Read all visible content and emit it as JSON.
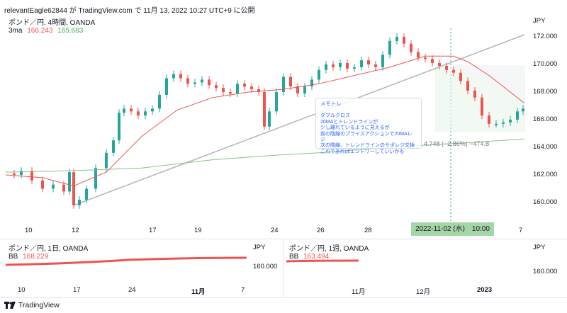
{
  "header": {
    "publisher": "relevantEagle62844 が TradingView.com で 11月 13, 2022 10:27 UTC+9 に公開"
  },
  "main_chart": {
    "symbol_line": "ポンド／円, 4時間, OANDA",
    "indicator_name": "3ma",
    "ma_value_1": "166.243",
    "ma_value_2": "165.683",
    "currency": "JPY",
    "price_ticks": [
      "172.000",
      "170.000",
      "168.000",
      "166.000",
      "164.000",
      "162.000",
      "160.000"
    ],
    "time_ticks": [
      "10",
      "12",
      "17",
      "19",
      "24",
      "26",
      "28",
      "7"
    ],
    "date_badge": "2022-11-02 (水)　10:00",
    "measure_label": "4.748 (−2.86%) −474.8",
    "colors": {
      "up": "#26a69a",
      "down": "#ef5350",
      "ma_red": "#ef5350",
      "ma_green": "#81c784",
      "trend": "#b2b5be"
    }
  },
  "note": {
    "title": "メモトレ",
    "lines": [
      "ダブルクロス",
      "20MAとトレンドラインが",
      "少し離れているように見えるが",
      "前の階線のプライスアクションで20MAレジ",
      "次の階線、トレンドラインのサポレジ交換",
      "これであればエントリーしていいかも"
    ]
  },
  "pane_daily": {
    "symbol_line": "ポンド／円, 1日, OANDA",
    "indicator_name": "BB",
    "value": "168.229",
    "currency": "JPY",
    "price_tick": "160.000",
    "time_ticks": [
      "10",
      "17",
      "24",
      "11月",
      "7"
    ]
  },
  "pane_weekly": {
    "symbol_line": "ポンド／円, 1週, OANDA",
    "indicator_name": "BB",
    "value": "163.494",
    "currency": "JPY",
    "price_tick": "160.000",
    "time_ticks": [
      "11月",
      "12月",
      "2023"
    ]
  },
  "footer": {
    "brand": "TradingView"
  }
}
